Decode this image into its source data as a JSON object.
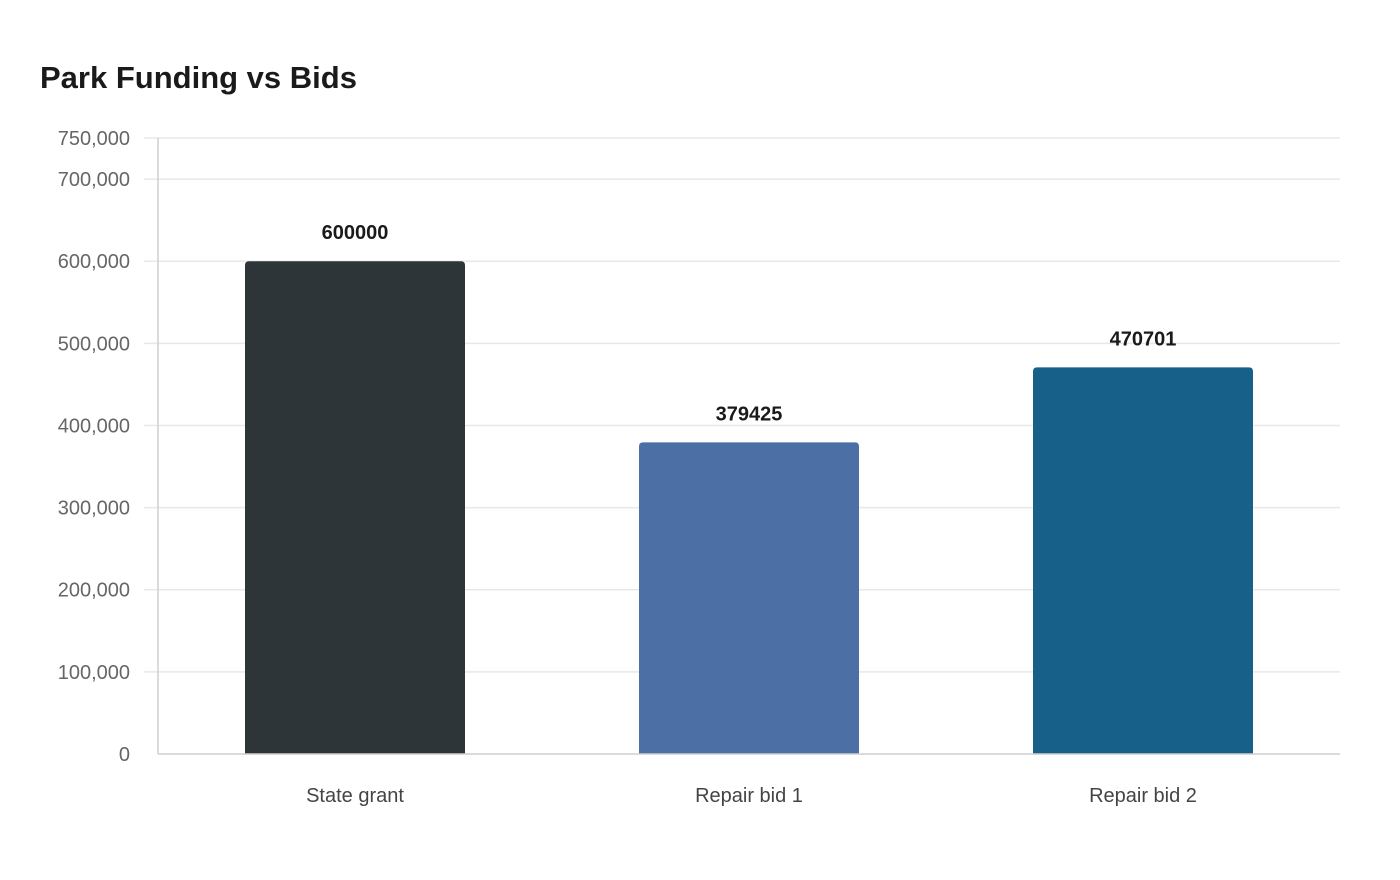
{
  "chart_data": {
    "type": "bar",
    "title": "Park Funding vs Bids",
    "xlabel": "",
    "ylabel": "",
    "categories": [
      "State grant",
      "Repair bid 1",
      "Repair bid 2"
    ],
    "values": [
      600000,
      379425,
      470701
    ],
    "data_labels": [
      "600000",
      "379425",
      "470701"
    ],
    "colors": [
      "#2d3538",
      "#4c6fa5",
      "#176089"
    ],
    "ylim": [
      0,
      750000
    ],
    "yticks": [
      0,
      100000,
      200000,
      300000,
      400000,
      500000,
      600000,
      700000,
      750000
    ],
    "ytick_labels": [
      "0",
      "100,000",
      "200,000",
      "300,000",
      "400,000",
      "500,000",
      "600,000",
      "700,000",
      "750,000"
    ],
    "grid": true,
    "legend": "none"
  }
}
